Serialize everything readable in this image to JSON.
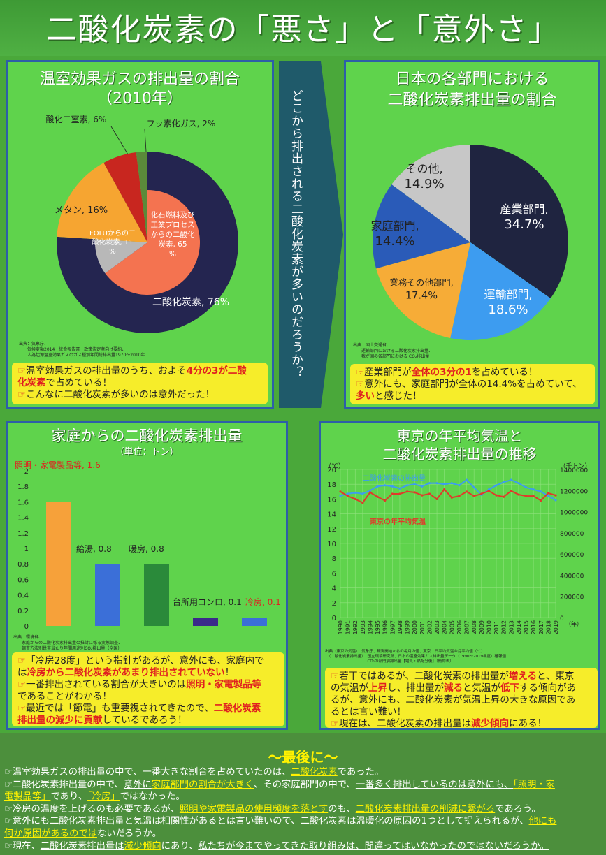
{
  "page": {
    "title": "二酸化炭素の「悪さ」と「意外さ」"
  },
  "middle": {
    "question": "どこから排出される二酸化炭素が多いのだろうか？"
  },
  "ghg": {
    "title_line1": "温室効果ガスの排出量の割合",
    "title_line2": "（2010年）",
    "source": "出典：気象庁、\n　　気候変動2014　統合報告書　政策決定者向け要約、\n　　人為起源温室効果ガスのガス種別年間総排出量1970～2010年",
    "note": {
      "l1a": "温室効果ガスの排出量のうち、およそ",
      "l1b": "4分の3が二酸",
      "l2a": "化炭素",
      "l2b": "で占めている！",
      "l3": "こんなに二酸化炭素が多いのは意外だった！"
    }
  },
  "sector": {
    "title_line1": "日本の各部門における",
    "title_line2": "二酸化炭素排出量の割合",
    "source": "出典：国土交通省、\n　　運輸部門における二酸化炭素排出量、\n　　我が国の各部門における CO₂排出量",
    "note": {
      "l1a": "産業部門が",
      "l1b": "全体の3分の1",
      "l1c": "を占めている！",
      "l2": "意外にも、家庭部門が全体の14.4%を占めていて、",
      "l3a": "多い",
      "l3b": "と感じた！"
    }
  },
  "household": {
    "title": "家庭からの二酸化炭素排出量",
    "unit": "（単位：トン）",
    "source": "出典：環境省、\n　　家庭からの二酸化炭素排出量の推計に係る実態調査、\n　　調査方法別世帯当たり年間用途別CO₂排出量（全国）",
    "note": {
      "l1a": "「冷房28度」という指針があるが、意外にも、家庭内で",
      "l2a": "は",
      "l2b": "冷房から二酸化炭素があまり排出されていない",
      "l2c": "！",
      "l3a": "一番排出されている割合が大きいのは",
      "l3b": "照明・家電製品等",
      "l4": "であることがわかる！",
      "l5a": "最近では「節電」も重要視されてきたので、",
      "l5b": "二酸化炭素",
      "l6a": "排出量の減少に貢献",
      "l6b": "しているであろう！"
    }
  },
  "tokyo": {
    "title_line1": "東京の年平均気温と",
    "title_line2": "二酸化炭素排出量の推移",
    "source": "出典（東京の気温）：気象庁、観測開始からの毎月の値、東京　日平均気温の月平均値（℃）\n　（二酸化炭素排出量）：国立環境研究所、日本の温室効果ガス排出量データ（1990～2019年度）確報値、\n　　　　　　　　　　　CO₂の部門別排出量【電気・熱配分後】（簡約表）",
    "note": {
      "l1a": "若干ではあるが、二酸化炭素の排出量が",
      "l1b": "増える",
      "l1c": "と、東京",
      "l2a": "の気温が",
      "l2b": "上昇",
      "l2c": "し、排出量が",
      "l2d": "減る",
      "l2e": "と気温が",
      "l2f": "低下",
      "l2g": "する傾向があ",
      "l3": "るが、意外にも、二酸化炭素が気温上昇の大きな原因であ",
      "l4": "るとは言い難い！",
      "l5a": "現在は、二酸化炭素の排出量は",
      "l5b": "減少傾向",
      "l5c": "にある！"
    }
  },
  "final": {
    "title": "～最後に～",
    "p1a": "温室効果ガスの排出量の中で、一番大きな割合を占めていたのは、",
    "p1b": "二酸化炭素",
    "p1c": "であった。",
    "p2a": "二酸化炭素排出量の中で、",
    "p2b": "意外に",
    "p2c": "家庭部門の割合が大きく",
    "p2d": "、その家庭部門の中で、",
    "p2e": "一番多く排出しているのは意外にも、",
    "p2f": "「照明・家",
    "p3a": "電製品等」",
    "p3b": "であり、",
    "p3c": "「冷房」",
    "p3d": "ではなかった。",
    "p4a": "冷房の温度を上げるのも必要であるが、",
    "p4b": "照明や家電製品の使用頻度を落とす",
    "p4c": "のも、",
    "p4d": "二酸化炭素排出量の削減に繋がる",
    "p4e": "であろう。",
    "p5a": "意外にも二酸化炭素排出量と気温は相関性があるとは言い難いので、二酸化炭素は温暖化の原因の1つとして捉えられるが、",
    "p5b": "他にも",
    "p6a": "何か原因があるのでは",
    "p6b": "ないだろうか。",
    "p7a": "現在、",
    "p7b": "二酸化炭素排出量は",
    "p7c": "減少傾向",
    "p7d": "にあり、",
    "p7e": "私たちが今までやってきた取り組みは、間違ってはいなかったのではないだろうか。"
  },
  "chart_data": [
    {
      "type": "pie",
      "title": "温室効果ガスの排出量の割合（2010年）",
      "slices": [
        {
          "label": "二酸化炭素, 76%",
          "value": 76,
          "color": "#242550"
        },
        {
          "label": "メタン, 16%",
          "value": 16,
          "color": "#f6a531"
        },
        {
          "label": "一酸化二窒素, 6%",
          "value": 6,
          "color": "#c8261f"
        },
        {
          "label": "フッ素化ガス, 2%",
          "value": 2,
          "color": "#5a8a3a"
        }
      ],
      "inner": [
        {
          "label": "化石燃料及び工業プロセスからの二酸化炭素, 65%",
          "value": 65,
          "color": "#f47350"
        },
        {
          "label": "FOLUからの二酸化炭素, 11%",
          "value": 11,
          "color": "#b8b8b8"
        }
      ]
    },
    {
      "type": "pie",
      "title": "日本の各部門における二酸化炭素排出量の割合",
      "slices": [
        {
          "label": "産業部門, 34.7%",
          "value": 34.7,
          "color": "#1f2440"
        },
        {
          "label": "運輸部門, 18.6%",
          "value": 18.6,
          "color": "#3d9cf0"
        },
        {
          "label": "業務その他部門, 17.4%",
          "value": 17.4,
          "color": "#f6ac37"
        },
        {
          "label": "家庭部門, 14.4%",
          "value": 14.4,
          "color": "#2a5bb8"
        },
        {
          "label": "その他, 14.9%",
          "value": 14.9,
          "color": "#c7c7c7"
        }
      ]
    },
    {
      "type": "bar",
      "title": "家庭からの二酸化炭素排出量",
      "ylabel": "（単位：トン）",
      "ylim": [
        0,
        2
      ],
      "yticks": [
        "0",
        "0.2",
        "0.4",
        "0.6",
        "0.8",
        "1",
        "1.2",
        "1.4",
        "1.6",
        "1.8",
        "2"
      ],
      "categories": [
        "照明・家電製品等",
        "給湯",
        "暖房",
        "台所用コンロ",
        "冷房"
      ],
      "values": [
        1.6,
        0.8,
        0.8,
        0.1,
        0.1
      ],
      "labels": [
        "照明・家電製品等, 1.6",
        "給湯, 0.8",
        "暖房, 0.8",
        "台所用コンロ, 0.1",
        "冷房, 0.1"
      ],
      "colors": [
        "#f6a13a",
        "#3b6fd8",
        "#2a8a3a",
        "#3a2a8a",
        "#3b6fd8"
      ]
    },
    {
      "type": "line",
      "title": "東京の年平均気温と二酸化炭素排出量の推移",
      "x": [
        "1990",
        "1991",
        "1992",
        "1993",
        "1994",
        "1995",
        "1996",
        "1997",
        "1998",
        "1999",
        "2000",
        "2001",
        "2002",
        "2003",
        "2004",
        "2005",
        "2006",
        "2007",
        "2008",
        "2009",
        "2010",
        "2011",
        "2012",
        "2013",
        "2014",
        "2015",
        "2016",
        "2017",
        "2018",
        "2019"
      ],
      "ylabel_left": "（℃）",
      "ylabel_right": "（千トン）",
      "xlabel": "（年）",
      "ylim_left": [
        0,
        20
      ],
      "yticks_left": [
        "0",
        "2",
        "4",
        "6",
        "8",
        "10",
        "12",
        "14",
        "16",
        "18",
        "20"
      ],
      "ylim_right": [
        0,
        1400000
      ],
      "yticks_right": [
        "0",
        "200000",
        "400000",
        "600000",
        "800000",
        "1000000",
        "1200000",
        "1400000"
      ],
      "series": [
        {
          "name": "二酸化炭素の排出量",
          "axis": "right",
          "color": "#3d9cf0",
          "values": [
            1150000,
            1170000,
            1180000,
            1170000,
            1200000,
            1240000,
            1250000,
            1240000,
            1220000,
            1250000,
            1260000,
            1240000,
            1270000,
            1270000,
            1260000,
            1270000,
            1250000,
            1300000,
            1230000,
            1160000,
            1210000,
            1250000,
            1280000,
            1300000,
            1270000,
            1230000,
            1210000,
            1190000,
            1150000,
            1110000
          ]
        },
        {
          "name": "東京の年平均気温",
          "axis": "left",
          "color": "#e03a2a",
          "values": [
            17.0,
            16.4,
            16.0,
            15.5,
            16.9,
            16.3,
            15.8,
            16.7,
            16.7,
            17.0,
            16.9,
            16.5,
            16.7,
            16.0,
            17.3,
            16.2,
            16.4,
            17.0,
            16.4,
            16.7,
            17.1,
            16.5,
            16.3,
            17.1,
            16.6,
            16.4,
            16.4,
            15.8,
            16.8,
            16.5
          ]
        }
      ]
    }
  ]
}
